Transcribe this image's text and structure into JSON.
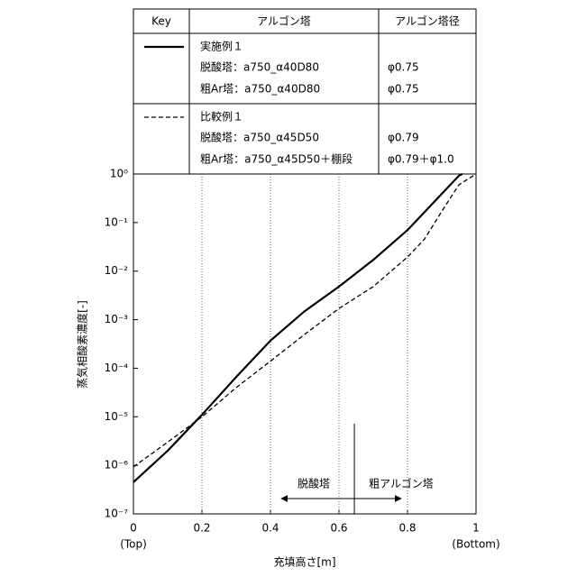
{
  "chart_data": {
    "type": "line",
    "xlabel": "充填高さ[m]",
    "ylabel": "蒸気相酸素濃度[-]",
    "x_end_labels": [
      "(Top)",
      "(Bottom)"
    ],
    "xlim": [
      0,
      1
    ],
    "xticks": [
      0,
      0.2,
      0.4,
      0.6,
      0.8,
      1
    ],
    "ylim": [
      1e-07,
      1
    ],
    "yticks": [
      {
        "value": 1e-07,
        "label": "10⁻⁷"
      },
      {
        "value": 1e-06,
        "label": "10⁻⁶"
      },
      {
        "value": 1e-05,
        "label": "10⁻⁵"
      },
      {
        "value": 0.0001,
        "label": "10⁻⁴"
      },
      {
        "value": 0.001,
        "label": "10⁻³"
      },
      {
        "value": 0.01,
        "label": "10⁻²"
      },
      {
        "value": 0.1,
        "label": "10⁻¹"
      },
      {
        "value": 1,
        "label": "10⁰"
      }
    ],
    "log_y": true,
    "grid": "x",
    "legend_table": {
      "header": [
        "Key",
        "アルゴン塔",
        "アルゴン塔径"
      ],
      "rows": [
        {
          "lines": [
            "脱酸塔：a750_α40D80",
            "粗Ar塔：a750_α40D80"
          ],
          "diameters": [
            "φ0.75",
            "φ0.75"
          ]
        },
        {
          "lines": [
            "脱酸塔：a750_α45D50",
            "粗Ar塔：a750_α45D50＋棚段"
          ],
          "diameters": [
            "φ0.79",
            "φ0.79＋φ1.0"
          ]
        }
      ]
    },
    "series": [
      {
        "name": "実施例１",
        "color": "#000000",
        "dash": "solid",
        "x": [
          0,
          0.1,
          0.2,
          0.3,
          0.4,
          0.5,
          0.6,
          0.7,
          0.8,
          0.9,
          0.95,
          0.96
        ],
        "values": [
          4.5e-07,
          2e-06,
          1.1e-05,
          6.6e-05,
          0.00037,
          0.0015,
          0.0048,
          0.017,
          0.07,
          0.39,
          0.92,
          1
        ]
      },
      {
        "name": "比較例１",
        "color": "#000000",
        "dash": "dashed",
        "x": [
          0,
          0.1,
          0.2,
          0.3,
          0.4,
          0.5,
          0.6,
          0.7,
          0.8,
          0.85,
          0.9,
          0.95,
          1
        ],
        "values": [
          9.3e-07,
          3e-06,
          1e-05,
          4e-05,
          0.00014,
          0.0005,
          0.0017,
          0.0048,
          0.0195,
          0.046,
          0.17,
          0.6,
          1
        ]
      }
    ],
    "divider_x": 0.645,
    "annotations": [
      "脱酸塔",
      "粗アルゴン塔"
    ]
  }
}
